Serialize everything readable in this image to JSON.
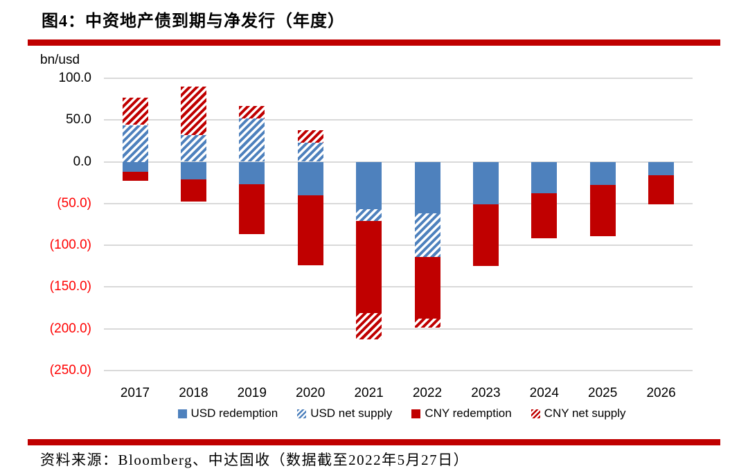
{
  "title": "图4：中资地产债到期与净发行（年度）",
  "source": "资料来源：Bloomberg、中达固收（数据截至2022年5月27日）",
  "divider_color": "#C00000",
  "chart_data": {
    "type": "bar",
    "stacked": true,
    "title": "图4：中资地产债到期与净发行（年度）",
    "unit_label": "bn/usd",
    "xlabel": "",
    "ylabel": "bn/usd",
    "ylim": [
      -250,
      100
    ],
    "grid": true,
    "legend_position": "bottom",
    "categories": [
      "2017",
      "2018",
      "2019",
      "2020",
      "2021",
      "2022",
      "2023",
      "2024",
      "2025",
      "2026"
    ],
    "series": [
      {
        "name": "USD redemption",
        "key": "usd-redemption",
        "color": "#4E81BD",
        "pattern": "solid",
        "values": [
          -12,
          -21,
          -27,
          -40,
          -57,
          -62,
          -51,
          -38,
          -28,
          -16
        ]
      },
      {
        "name": "USD net supply",
        "key": "usd-net-supply",
        "color": "#4E81BD",
        "pattern": "hatch",
        "values": [
          44,
          32,
          52,
          23,
          -14,
          -52,
          0,
          0,
          0,
          0
        ]
      },
      {
        "name": "CNY redemption",
        "key": "cny-redemption",
        "color": "#C00000",
        "pattern": "solid",
        "values": [
          -11,
          -27,
          -60,
          -84,
          -110,
          -74,
          -74,
          -54,
          -61,
          -35
        ]
      },
      {
        "name": "CNY net supply",
        "key": "cny-net-supply",
        "color": "#C00000",
        "pattern": "hatch",
        "values": [
          33,
          58,
          15,
          15,
          -32,
          -11,
          0,
          0,
          0,
          0
        ]
      }
    ],
    "y_ticks": [
      {
        "label": "100.0",
        "value": 100
      },
      {
        "label": "50.0",
        "value": 50
      },
      {
        "label": "0.0",
        "value": 0
      },
      {
        "label": "(50.0)",
        "value": -50
      },
      {
        "label": "(100.0)",
        "value": -100
      },
      {
        "label": "(150.0)",
        "value": -150
      },
      {
        "label": "(200.0)",
        "value": -200
      },
      {
        "label": "(250.0)",
        "value": -250
      }
    ],
    "colors": {
      "grid": "#D9D9D9",
      "negative_tick": "#FF0000",
      "positive_tick": "#000000"
    }
  }
}
